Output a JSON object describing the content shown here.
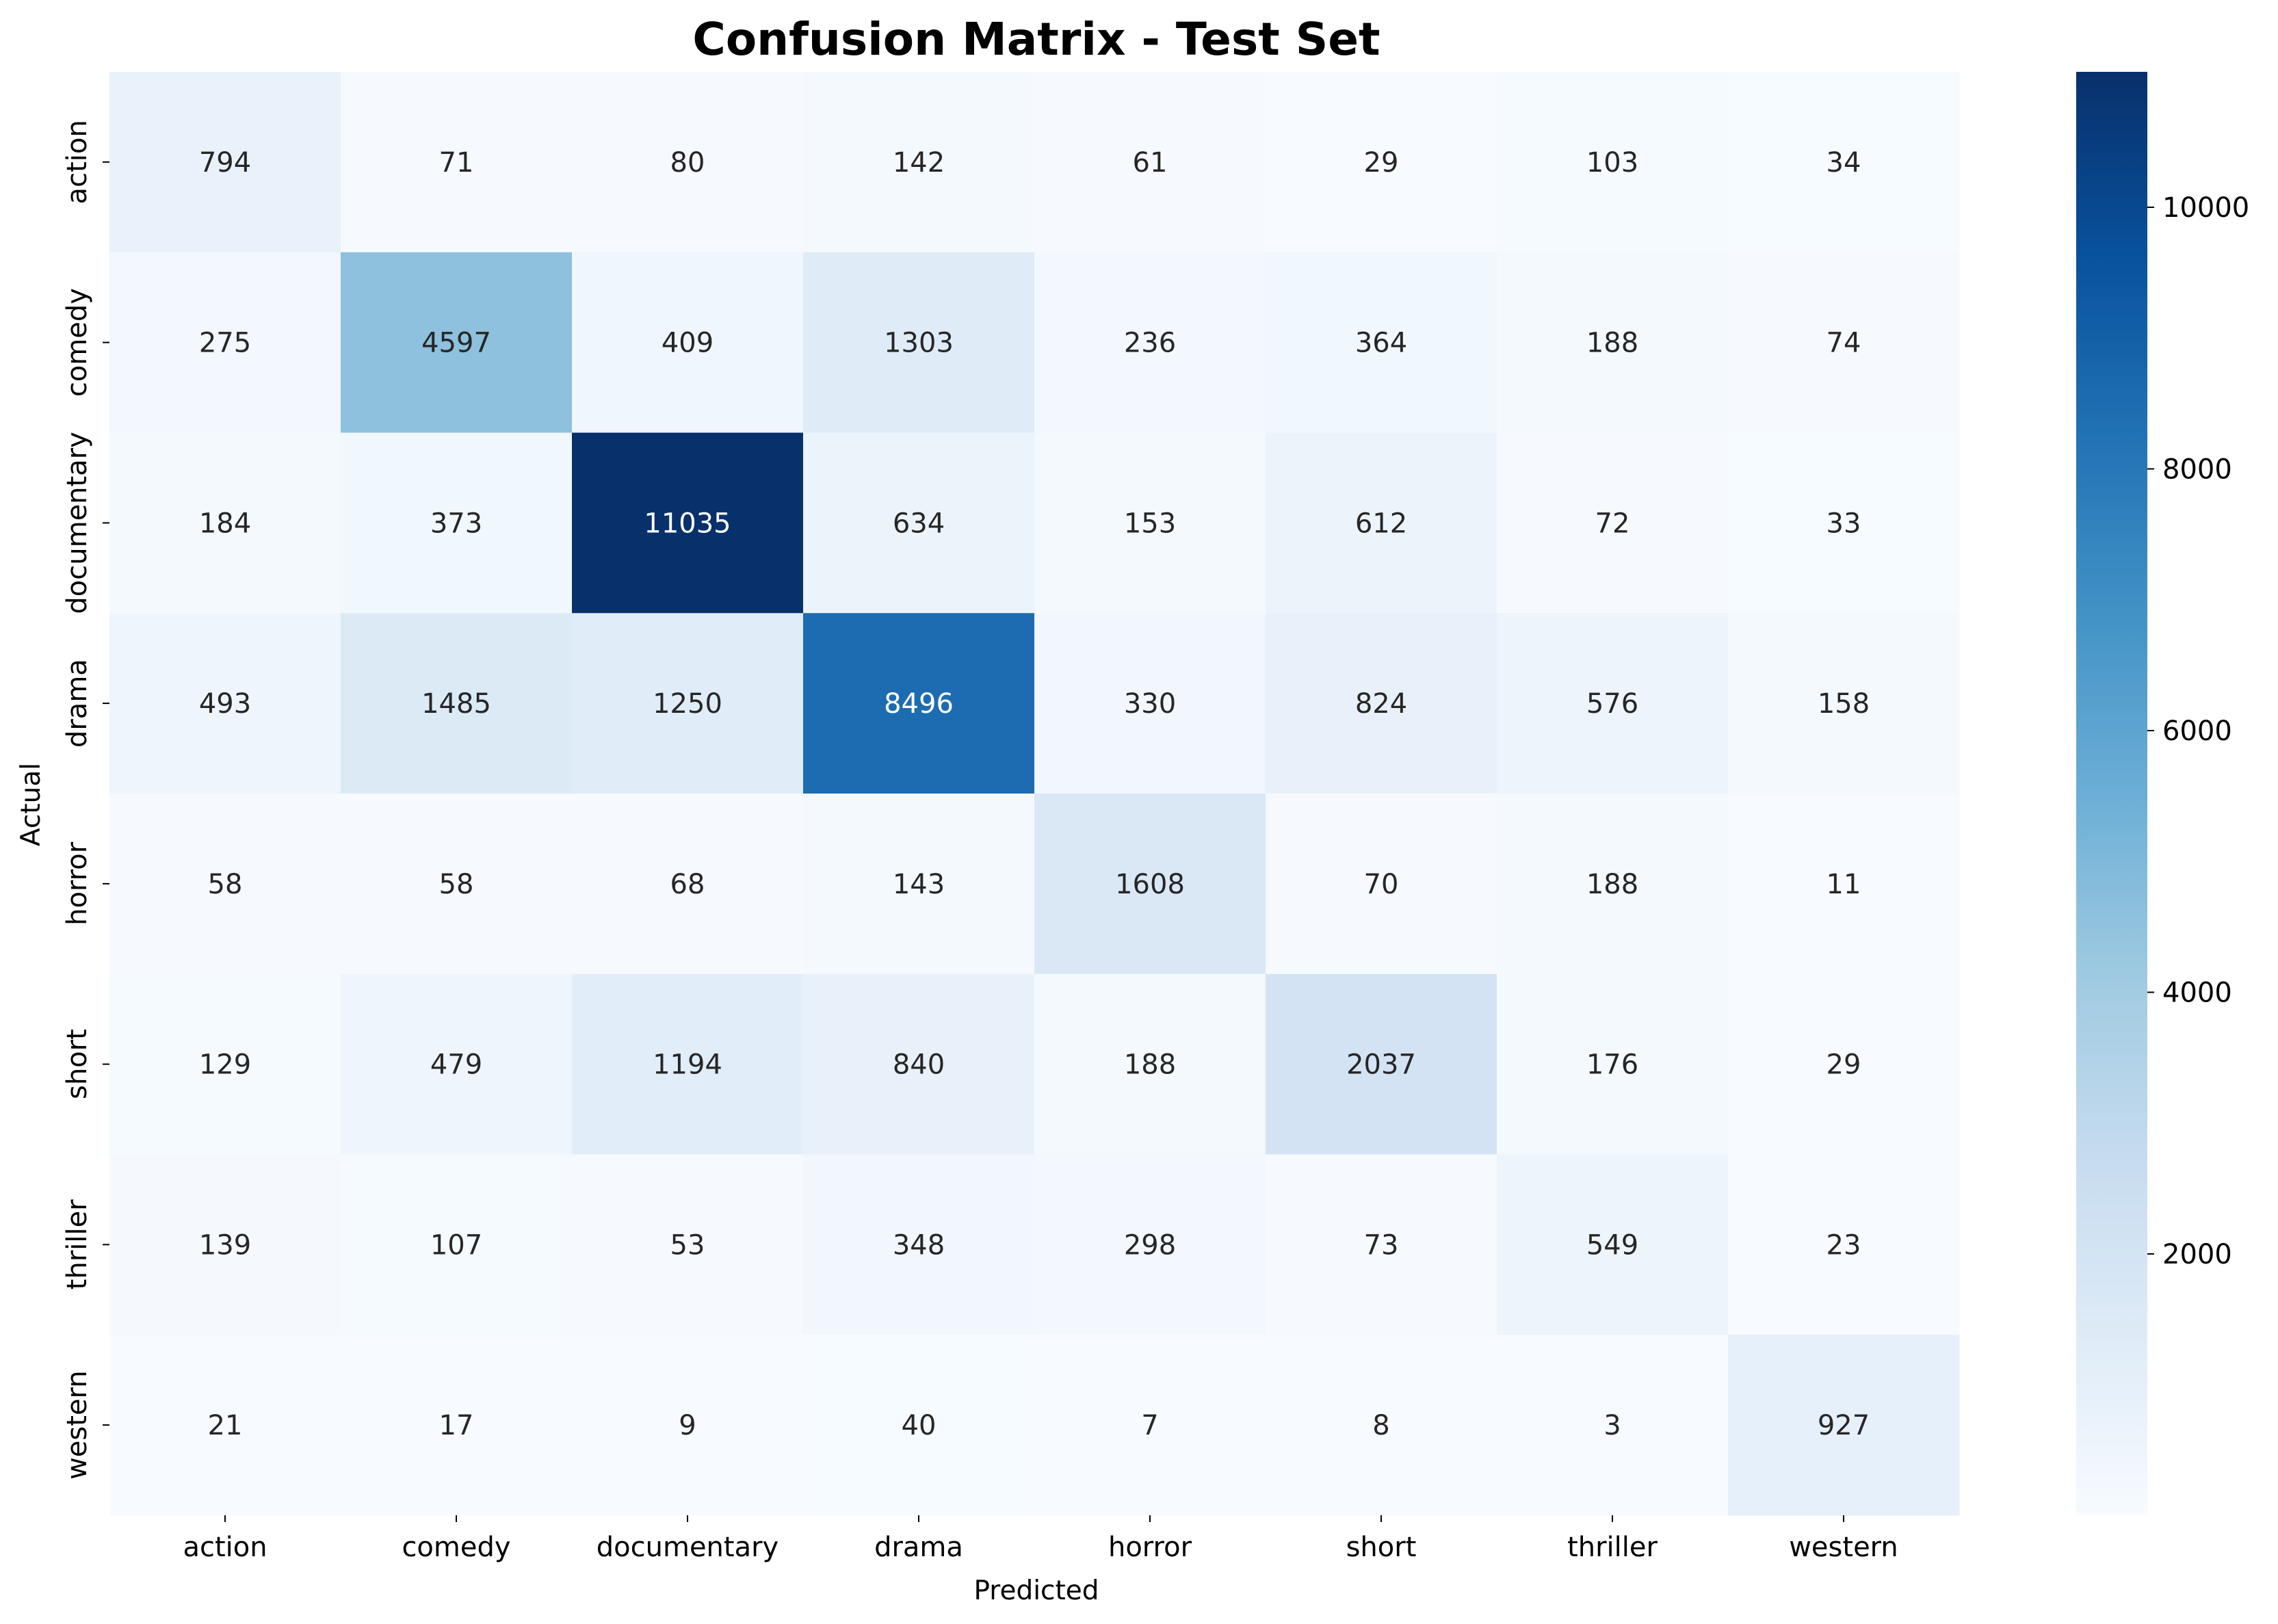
{
  "chart_data": {
    "type": "heatmap",
    "title": "Confusion Matrix - Test Set",
    "xlabel": "Predicted",
    "ylabel": "Actual",
    "x_categories": [
      "action",
      "comedy",
      "documentary",
      "drama",
      "horror",
      "short",
      "thriller",
      "western"
    ],
    "y_categories": [
      "action",
      "comedy",
      "documentary",
      "drama",
      "horror",
      "short",
      "thriller",
      "western"
    ],
    "values": [
      [
        794,
        71,
        80,
        142,
        61,
        29,
        103,
        34
      ],
      [
        275,
        4597,
        409,
        1303,
        236,
        364,
        188,
        74
      ],
      [
        184,
        373,
        11035,
        634,
        153,
        612,
        72,
        33
      ],
      [
        493,
        1485,
        1250,
        8496,
        330,
        824,
        576,
        158
      ],
      [
        58,
        58,
        68,
        143,
        1608,
        70,
        188,
        11
      ],
      [
        129,
        479,
        1194,
        840,
        188,
        2037,
        176,
        29
      ],
      [
        139,
        107,
        53,
        348,
        298,
        73,
        549,
        23
      ],
      [
        21,
        17,
        9,
        40,
        7,
        8,
        3,
        927
      ]
    ],
    "colormap": "Blues",
    "colorbar": {
      "min": 3,
      "max": 11035,
      "ticks": [
        2000,
        4000,
        6000,
        8000,
        10000
      ],
      "tick_labels": [
        "2000",
        "4000",
        "6000",
        "8000",
        "10000"
      ]
    }
  }
}
